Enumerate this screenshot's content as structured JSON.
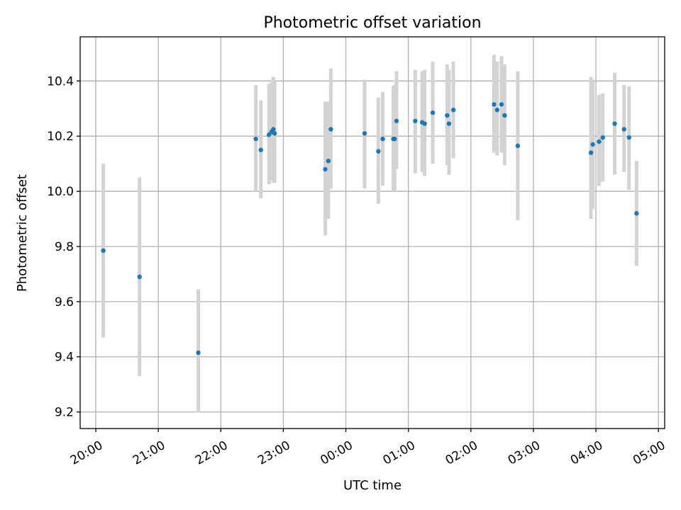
{
  "chart_data": {
    "type": "scatter",
    "title": "Photometric offset variation",
    "xlabel": "UTC time",
    "ylabel": "Photometric offset",
    "x_unit": "hours (UTC, continuous across midnight)",
    "xlim": [
      19.75,
      29.1
    ],
    "ylim": [
      9.14,
      10.56
    ],
    "grid": true,
    "x_ticks": [
      {
        "value": 20,
        "label": "20:00"
      },
      {
        "value": 21,
        "label": "21:00"
      },
      {
        "value": 22,
        "label": "22:00"
      },
      {
        "value": 23,
        "label": "23:00"
      },
      {
        "value": 24,
        "label": "00:00"
      },
      {
        "value": 25,
        "label": "01:00"
      },
      {
        "value": 26,
        "label": "02:00"
      },
      {
        "value": 27,
        "label": "03:00"
      },
      {
        "value": 28,
        "label": "04:00"
      },
      {
        "value": 29,
        "label": "05:00"
      }
    ],
    "y_ticks": [
      {
        "value": 9.2,
        "label": "9.2"
      },
      {
        "value": 9.4,
        "label": "9.4"
      },
      {
        "value": 9.6,
        "label": "9.6"
      },
      {
        "value": 9.8,
        "label": "9.8"
      },
      {
        "value": 10.0,
        "label": "10.0"
      },
      {
        "value": 10.2,
        "label": "10.2"
      },
      {
        "value": 10.4,
        "label": "10.4"
      }
    ],
    "marker_color": "#1f77b4",
    "errorbar_color": "#d3d3d3",
    "points": [
      {
        "x": 20.12,
        "y": 9.785,
        "lo": 9.47,
        "hi": 10.1
      },
      {
        "x": 20.7,
        "y": 9.69,
        "lo": 9.33,
        "hi": 10.05
      },
      {
        "x": 21.64,
        "y": 9.415,
        "lo": 9.2,
        "hi": 9.645
      },
      {
        "x": 22.56,
        "y": 10.19,
        "lo": 10.0,
        "hi": 10.385
      },
      {
        "x": 22.64,
        "y": 10.15,
        "lo": 9.975,
        "hi": 10.33
      },
      {
        "x": 22.77,
        "y": 10.205,
        "lo": 10.025,
        "hi": 10.39
      },
      {
        "x": 22.81,
        "y": 10.215,
        "lo": 10.04,
        "hi": 10.395
      },
      {
        "x": 22.84,
        "y": 10.225,
        "lo": 10.03,
        "hi": 10.415
      },
      {
        "x": 22.86,
        "y": 10.21,
        "lo": 10.03,
        "hi": 10.4
      },
      {
        "x": 23.67,
        "y": 10.08,
        "lo": 9.84,
        "hi": 10.325
      },
      {
        "x": 23.72,
        "y": 10.11,
        "lo": 9.9,
        "hi": 10.325
      },
      {
        "x": 23.76,
        "y": 10.225,
        "lo": 10.01,
        "hi": 10.445
      },
      {
        "x": 24.3,
        "y": 10.21,
        "lo": 10.01,
        "hi": 10.405
      },
      {
        "x": 24.52,
        "y": 10.145,
        "lo": 9.955,
        "hi": 10.34
      },
      {
        "x": 24.59,
        "y": 10.19,
        "lo": 10.02,
        "hi": 10.36
      },
      {
        "x": 24.76,
        "y": 10.19,
        "lo": 10.0,
        "hi": 10.38
      },
      {
        "x": 24.78,
        "y": 10.19,
        "lo": 10.0,
        "hi": 10.385
      },
      {
        "x": 24.81,
        "y": 10.255,
        "lo": 10.08,
        "hi": 10.435
      },
      {
        "x": 25.11,
        "y": 10.255,
        "lo": 10.065,
        "hi": 10.44
      },
      {
        "x": 25.22,
        "y": 10.25,
        "lo": 10.07,
        "hi": 10.435
      },
      {
        "x": 25.26,
        "y": 10.245,
        "lo": 10.055,
        "hi": 10.44
      },
      {
        "x": 25.39,
        "y": 10.285,
        "lo": 10.1,
        "hi": 10.47
      },
      {
        "x": 25.62,
        "y": 10.275,
        "lo": 10.095,
        "hi": 10.46
      },
      {
        "x": 25.65,
        "y": 10.245,
        "lo": 10.06,
        "hi": 10.44
      },
      {
        "x": 25.72,
        "y": 10.295,
        "lo": 10.12,
        "hi": 10.47
      },
      {
        "x": 26.37,
        "y": 10.315,
        "lo": 10.14,
        "hi": 10.495
      },
      {
        "x": 26.42,
        "y": 10.295,
        "lo": 10.13,
        "hi": 10.47
      },
      {
        "x": 26.49,
        "y": 10.315,
        "lo": 10.14,
        "hi": 10.49
      },
      {
        "x": 26.54,
        "y": 10.275,
        "lo": 10.095,
        "hi": 10.46
      },
      {
        "x": 26.75,
        "y": 10.165,
        "lo": 9.895,
        "hi": 10.435
      },
      {
        "x": 27.92,
        "y": 10.14,
        "lo": 9.9,
        "hi": 10.415
      },
      {
        "x": 27.95,
        "y": 10.17,
        "lo": 9.935,
        "hi": 10.405
      },
      {
        "x": 28.05,
        "y": 10.18,
        "lo": 10.02,
        "hi": 10.35
      },
      {
        "x": 28.11,
        "y": 10.195,
        "lo": 10.035,
        "hi": 10.355
      },
      {
        "x": 28.3,
        "y": 10.245,
        "lo": 10.06,
        "hi": 10.43
      },
      {
        "x": 28.45,
        "y": 10.225,
        "lo": 10.07,
        "hi": 10.385
      },
      {
        "x": 28.53,
        "y": 10.195,
        "lo": 10.005,
        "hi": 10.38
      },
      {
        "x": 28.65,
        "y": 9.92,
        "lo": 9.73,
        "hi": 10.11
      }
    ]
  }
}
